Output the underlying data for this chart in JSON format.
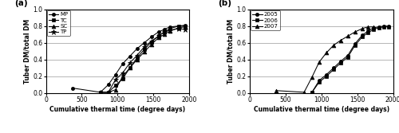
{
  "panel_a": {
    "title": "(a)",
    "xlabel": "Cumulative thermal time (degree days)",
    "ylabel": "Tuber DM/total DM",
    "xlim": [
      0,
      2000
    ],
    "ylim": [
      0.0,
      1.0
    ],
    "xticks": [
      0,
      500,
      1000,
      1500,
      2000
    ],
    "yticks": [
      0.0,
      0.2,
      0.4,
      0.6,
      0.8,
      1.0
    ],
    "series": {
      "MP": {
        "x": [
          370,
          760,
          870,
          970,
          1070,
          1170,
          1270,
          1370,
          1470,
          1570,
          1650,
          1730,
          1850,
          1940
        ],
        "y": [
          0.06,
          0.01,
          0.1,
          0.22,
          0.35,
          0.44,
          0.53,
          0.6,
          0.67,
          0.73,
          0.76,
          0.79,
          0.8,
          0.81
        ],
        "marker": "o",
        "markersize": 3.0
      },
      "TC": {
        "x": [
          760,
          870,
          970,
          1070,
          1170,
          1270,
          1370,
          1470,
          1570,
          1650,
          1730,
          1850,
          1940
        ],
        "y": [
          0.01,
          0.01,
          0.09,
          0.17,
          0.3,
          0.42,
          0.52,
          0.61,
          0.68,
          0.73,
          0.77,
          0.8,
          0.8
        ],
        "marker": "s",
        "markersize": 3.0
      },
      "SC": {
        "x": [
          760,
          870,
          970,
          1070,
          1170,
          1270,
          1370,
          1470,
          1570,
          1650,
          1730,
          1850,
          1940
        ],
        "y": [
          0.01,
          0.01,
          0.04,
          0.2,
          0.3,
          0.4,
          0.49,
          0.58,
          0.66,
          0.7,
          0.74,
          0.78,
          0.79
        ],
        "marker": "^",
        "markersize": 3.5
      },
      "TP": {
        "x": [
          760,
          870,
          970,
          1070,
          1170,
          1270,
          1370,
          1470,
          1570,
          1650,
          1730,
          1850,
          1940
        ],
        "y": [
          0.01,
          0.01,
          0.16,
          0.24,
          0.36,
          0.45,
          0.55,
          0.62,
          0.68,
          0.73,
          0.75,
          0.77,
          0.76
        ],
        "marker": "*",
        "markersize": 4.5
      }
    },
    "legend_labels": [
      "MP",
      "TC",
      "SC",
      "TP"
    ]
  },
  "panel_b": {
    "title": "(b)",
    "xlabel": "Cumulative thermal time (degree days)",
    "ylabel": "Tuber DM/total DM",
    "xlim": [
      0,
      2000
    ],
    "ylim": [
      0.0,
      1.0
    ],
    "xticks": [
      0,
      500,
      1000,
      1500,
      2000
    ],
    "yticks": [
      0.0,
      0.2,
      0.4,
      0.6,
      0.8,
      1.0
    ],
    "series": {
      "2005": {
        "x": [
          870,
          970,
          1070,
          1170,
          1270,
          1370,
          1470,
          1570,
          1650,
          1730,
          1800,
          1870,
          1940
        ],
        "y": [
          0.01,
          0.15,
          0.22,
          0.3,
          0.38,
          0.45,
          0.59,
          0.69,
          0.74,
          0.78,
          0.79,
          0.8,
          0.8
        ],
        "marker": "o",
        "markersize": 3.0
      },
      "2006": {
        "x": [
          870,
          970,
          1070,
          1170,
          1270,
          1370,
          1470,
          1570,
          1650,
          1730,
          1800,
          1870,
          1940
        ],
        "y": [
          0.01,
          0.13,
          0.2,
          0.28,
          0.36,
          0.43,
          0.57,
          0.67,
          0.72,
          0.76,
          0.78,
          0.79,
          0.79
        ],
        "marker": "s",
        "markersize": 3.0
      },
      "2007": {
        "x": [
          370,
          760,
          870,
          970,
          1070,
          1170,
          1270,
          1370,
          1470,
          1570,
          1650,
          1730
        ],
        "y": [
          0.03,
          0.01,
          0.19,
          0.37,
          0.48,
          0.57,
          0.63,
          0.68,
          0.73,
          0.77,
          0.79,
          0.79
        ],
        "marker": "^",
        "markersize": 3.5
      }
    },
    "legend_labels": [
      "2005",
      "2006",
      "2007"
    ]
  }
}
